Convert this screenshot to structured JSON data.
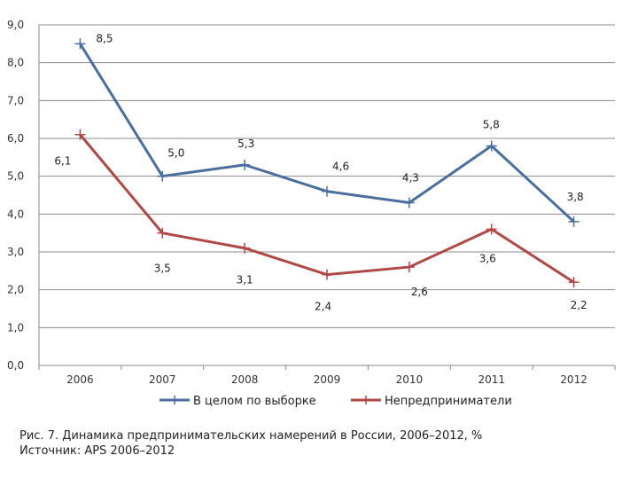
{
  "chart_data": {
    "type": "line",
    "categories": [
      "2006",
      "2007",
      "2008",
      "2009",
      "2010",
      "2011",
      "2012"
    ],
    "ylim": [
      0,
      9
    ],
    "yticks": [
      "0,0",
      "1,0",
      "2,0",
      "3,0",
      "4,0",
      "5,0",
      "6,0",
      "7,0",
      "8,0",
      "9,0"
    ],
    "grid": true,
    "legend_position": "bottom",
    "series": [
      {
        "name": "В целом по выборке",
        "color": "#4a6f9f",
        "values": [
          8.5,
          5.0,
          5.3,
          4.6,
          4.3,
          5.8,
          3.8
        ],
        "labels": [
          "8,5",
          "5,0",
          "5,3",
          "4,6",
          "4,3",
          "5,8",
          "3,8"
        ]
      },
      {
        "name": "Непредприниматели",
        "color": "#b04846",
        "values": [
          6.1,
          3.5,
          3.1,
          2.4,
          2.6,
          3.6,
          2.2
        ],
        "labels": [
          "6,1",
          "3,5",
          "3,1",
          "2,4",
          "2,6",
          "3,6",
          "2,2"
        ]
      }
    ]
  },
  "caption": {
    "line1": "Рис. 7. Динамика предпринимательских намерений в России, 2006–2012, %",
    "line2": "Источник: APS 2006–2012"
  }
}
